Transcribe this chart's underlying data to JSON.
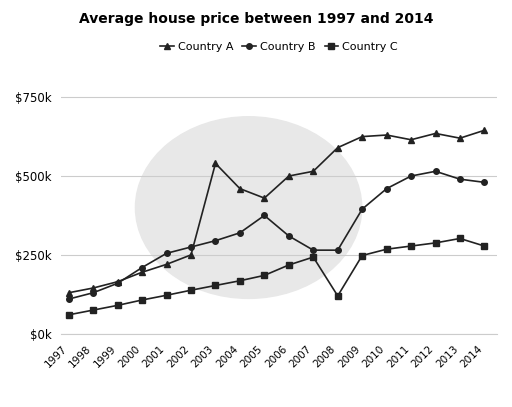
{
  "title": "Average house price between 1997 and 2014",
  "years": [
    1997,
    1998,
    1999,
    2000,
    2001,
    2002,
    2003,
    2004,
    2005,
    2006,
    2007,
    2008,
    2009,
    2010,
    2011,
    2012,
    2013,
    2014
  ],
  "country_a": [
    130000,
    145000,
    165000,
    195000,
    220000,
    250000,
    540000,
    460000,
    430000,
    500000,
    515000,
    590000,
    625000,
    630000,
    615000,
    635000,
    620000,
    645000
  ],
  "country_b": [
    110000,
    130000,
    160000,
    210000,
    255000,
    275000,
    295000,
    320000,
    375000,
    310000,
    265000,
    265000,
    395000,
    460000,
    500000,
    515000,
    490000,
    480000
  ],
  "country_c": [
    60000,
    75000,
    90000,
    107000,
    122000,
    138000,
    153000,
    168000,
    185000,
    218000,
    243000,
    120000,
    248000,
    268000,
    278000,
    288000,
    302000,
    278000
  ],
  "ylim": [
    0,
    800000
  ],
  "yticks": [
    0,
    250000,
    500000,
    750000
  ],
  "ytick_labels": [
    "$0k",
    "$250k",
    "$500k",
    "$750k"
  ],
  "line_color": "#222222",
  "background_color": "#ffffff",
  "watermark_color": "#e8e8e8",
  "grid_color": "#cccccc",
  "legend_labels": [
    "Country A",
    "Country B",
    "Country C"
  ],
  "legend_markers": [
    "^",
    "o",
    "s"
  ]
}
